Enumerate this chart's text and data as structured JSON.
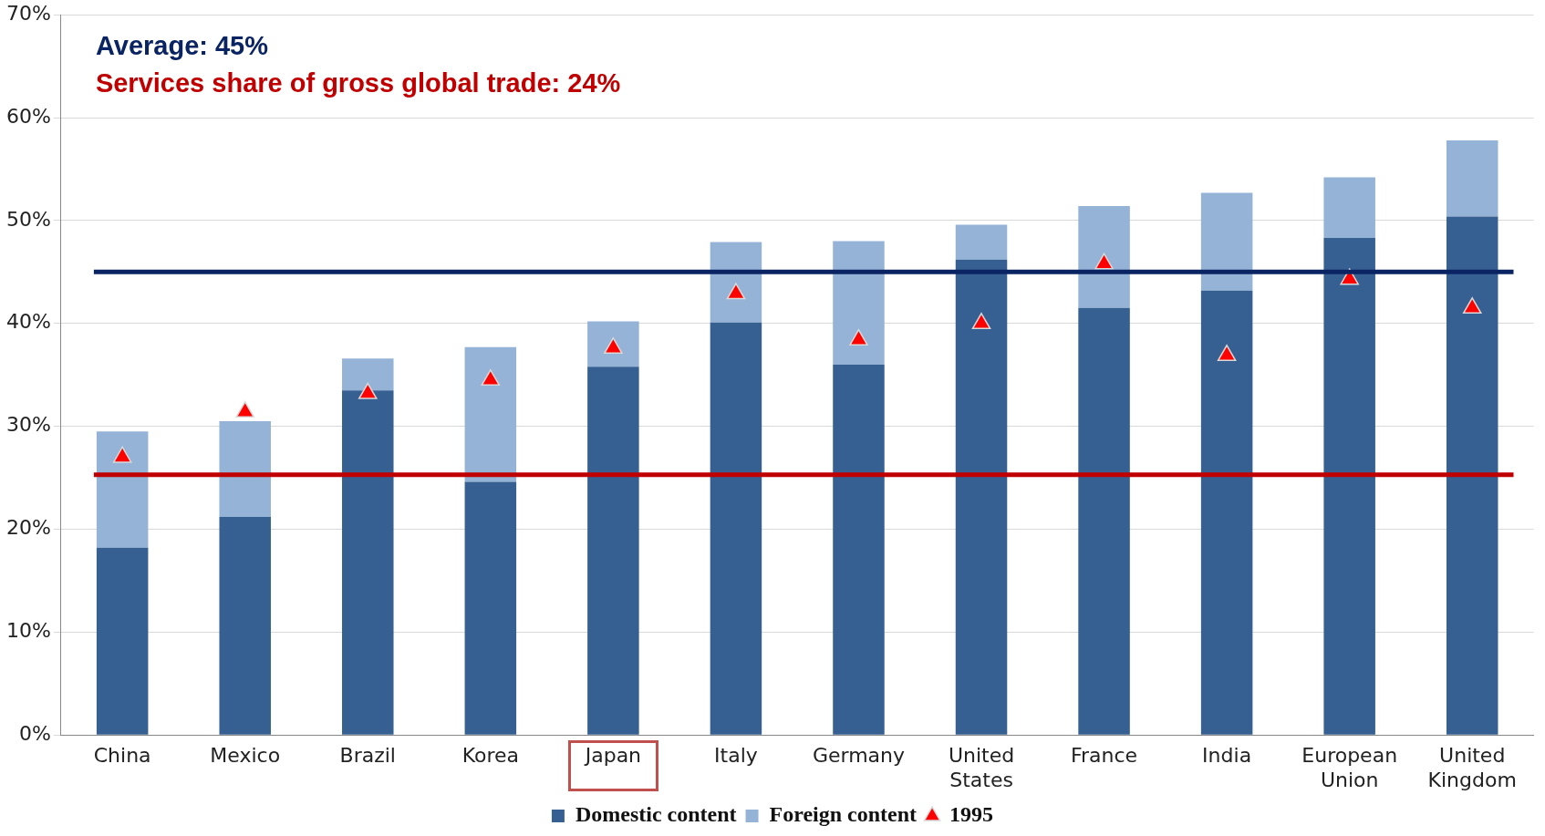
{
  "chart_data": {
    "type": "bar",
    "stacked": true,
    "categories": [
      "China",
      "Mexico",
      "Brazil",
      "Korea",
      "Japan",
      "Italy",
      "Germany",
      "United States",
      "France",
      "India",
      "European Union",
      "United Kingdom"
    ],
    "series": [
      {
        "name": "Domestic content",
        "color": "#376092",
        "values": [
          18.2,
          21.2,
          33.5,
          24.6,
          35.8,
          40.1,
          36.0,
          46.2,
          41.5,
          43.2,
          48.3,
          50.4
        ]
      },
      {
        "name": "Foreign content",
        "color": "#95b3d7",
        "values": [
          11.3,
          9.3,
          3.1,
          13.1,
          4.4,
          7.8,
          12.0,
          3.4,
          9.9,
          9.5,
          5.9,
          7.4
        ]
      },
      {
        "name": "1995",
        "type": "scatter",
        "marker": "triangle",
        "color": "#ff0000",
        "x": [
          "China",
          "Mexico",
          "Brazil",
          "Korea",
          "Japan",
          "Italy",
          "Germany",
          "United States",
          "France",
          "India",
          "European Union",
          "United Kingdom"
        ],
        "values": [
          27,
          31.4,
          33.2,
          34.5,
          37.6,
          42.9,
          38.4,
          40.0,
          45.8,
          36.9,
          44.3,
          41.5
        ]
      }
    ],
    "ylim": [
      0,
      70
    ],
    "yticks": [
      {
        "value": 0,
        "label": "0%"
      },
      {
        "value": 10,
        "label": "10%"
      },
      {
        "value": 20,
        "label": "20%"
      },
      {
        "value": 30,
        "label": "30%"
      },
      {
        "value": 40,
        "label": "40%"
      },
      {
        "value": 50,
        "label": "50%"
      },
      {
        "value": 60,
        "label": "60%"
      },
      {
        "value": 70,
        "label": "70%"
      }
    ],
    "ref_lines": [
      {
        "axis": "y",
        "value": 45,
        "color": "#0a2463"
      },
      {
        "axis": "y",
        "value": 25.3,
        "color": "#c00000"
      }
    ],
    "annotations": [
      "Average: 45%",
      "Services share of gross global trade: 24%"
    ],
    "grid": "y",
    "legend": "bottom"
  }
}
